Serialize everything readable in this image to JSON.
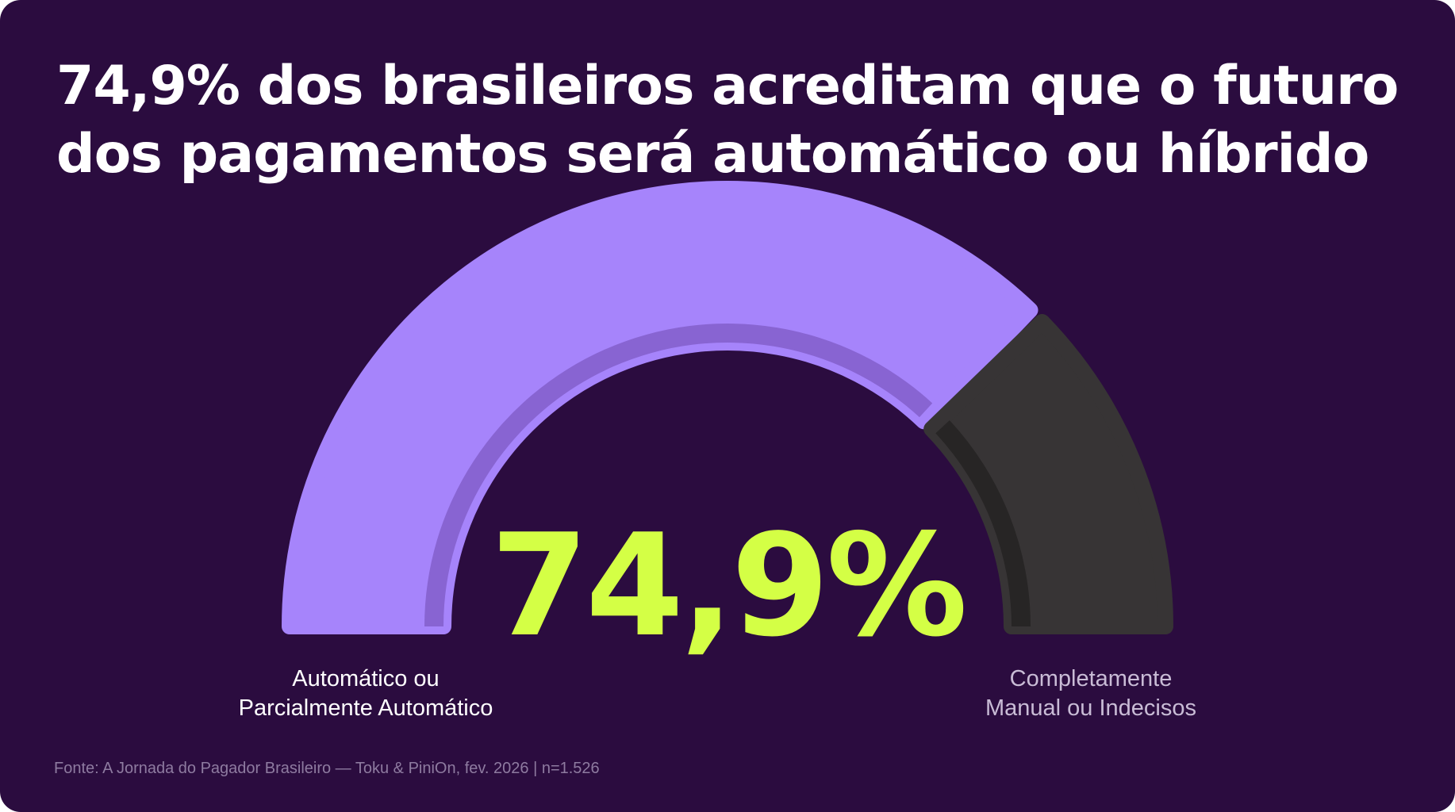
{
  "title": {
    "line1": "74,9% dos brasileiros acreditam que o futuro",
    "line2": "dos pagamentos será automático ou híbrido"
  },
  "chart_data": {
    "type": "gauge",
    "total": 100,
    "series": [
      {
        "name": "Automático ou Parcialmente Automático",
        "value": 74.9,
        "color": "#a684fb",
        "shade_color": "#8864d2"
      },
      {
        "name": "Completamente Manual ou Indecisos",
        "value": 25.1,
        "color": "#373435",
        "shade_color": "#272525"
      }
    ],
    "center_value": "74,9%",
    "center_color": "#d4ff45"
  },
  "labels": {
    "left_line1": "Automático ou",
    "left_line2": "Parcialmente Automático",
    "right_line1": "Completamente",
    "right_line2": "Manual ou Indecisos"
  },
  "source": "Fonte: A Jornada do Pagador Brasileiro — Toku & PiniOn, fev. 2026 | n=1.526",
  "colors": {
    "background": "#2b0c3f",
    "title": "#ffffff"
  }
}
